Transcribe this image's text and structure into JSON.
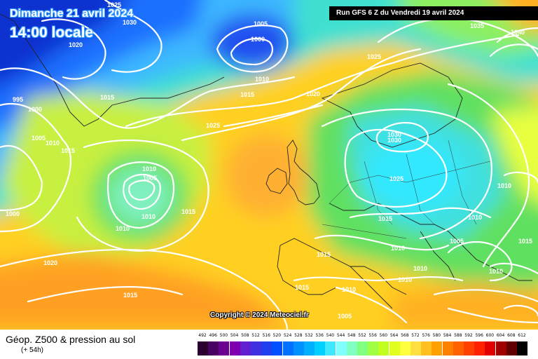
{
  "header": {
    "date_title": "Dimanche 21 avril 2024",
    "time_title": "14:00 locale",
    "run_info": "Run GFS 6 Z du Vendredi 19 avril 2024"
  },
  "copyright": "Copyright © 2024 Meteociel.fr",
  "legend": {
    "title": "Géop. Z500 & pression au sol",
    "subtitle": "(+ 54h)",
    "scale_values": [
      "492",
      "496",
      "500",
      "504",
      "508",
      "512",
      "516",
      "520",
      "524",
      "528",
      "532",
      "536",
      "540",
      "544",
      "548",
      "552",
      "556",
      "560",
      "564",
      "568",
      "572",
      "576",
      "580",
      "584",
      "588",
      "592",
      "596",
      "600",
      "604",
      "608",
      "612"
    ],
    "scale_colors": [
      "#2a0030",
      "#4a0060",
      "#6a0090",
      "#8000b0",
      "#6020d0",
      "#4030e0",
      "#2040f0",
      "#0050ff",
      "#0070ff",
      "#0090ff",
      "#00b0ff",
      "#00d0ff",
      "#40e8ff",
      "#80ffff",
      "#80ffc0",
      "#80ff80",
      "#a0ff40",
      "#c0ff20",
      "#e0ff20",
      "#ffff40",
      "#ffe040",
      "#ffc020",
      "#ffa000",
      "#ff8000",
      "#ff6000",
      "#ff4000",
      "#ff2000",
      "#e00000",
      "#a00000",
      "#600000",
      "#000000"
    ]
  },
  "isobar_labels": [
    "1025",
    "1030",
    "1005",
    "1000",
    "1020",
    "995",
    "1000",
    "1005",
    "1010",
    "1015",
    "1015",
    "1010",
    "1015",
    "1025",
    "1020",
    "1035",
    "1040",
    "1025",
    "1010",
    "1015",
    "1030",
    "1030",
    "1025",
    "1010",
    "1005",
    "1010",
    "1015",
    "1000",
    "1020",
    "1010",
    "1015",
    "1015",
    "1010",
    "1005",
    "1010",
    "1015",
    "1010",
    "1010",
    "1015",
    "1005",
    "1010",
    "1010"
  ]
}
